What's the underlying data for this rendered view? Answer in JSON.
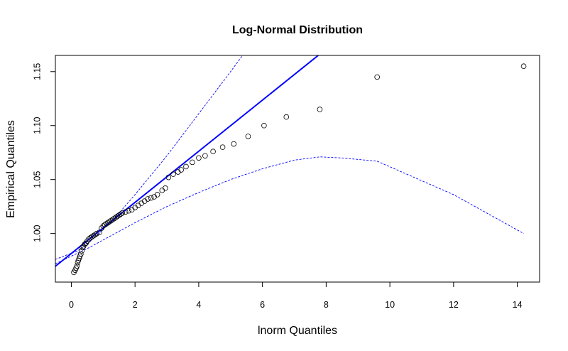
{
  "chart_data": {
    "type": "scatter",
    "title": "Log-Normal Distribution",
    "xlabel": "lnorm Quantiles",
    "ylabel": "Empirical Quantiles",
    "xlim": [
      -0.5,
      14.7
    ],
    "ylim": [
      0.955,
      1.165
    ],
    "x_ticks": [
      0,
      2,
      4,
      6,
      8,
      10,
      12,
      14
    ],
    "x_tick_labels": [
      "0",
      "2",
      "4",
      "6",
      "8",
      "10",
      "12",
      "14"
    ],
    "y_ticks": [
      1.0,
      1.05,
      1.1,
      1.15
    ],
    "y_tick_labels": [
      "1.00",
      "1.05",
      "1.10",
      "1.15"
    ],
    "grid": false,
    "legend": "none",
    "colors": {
      "reference_line": "#0000ff",
      "envelope": "#0000ff",
      "points": "#000000"
    },
    "reference_line": {
      "intercept": 0.9815,
      "slope": 0.02368
    },
    "envelope_upper": {
      "x": [
        -0.5,
        0.2,
        0.5,
        1.0,
        1.5,
        2.0,
        3.0,
        4.0,
        5.0,
        5.6
      ],
      "y": [
        0.976,
        0.984,
        0.99,
        1.004,
        1.019,
        1.036,
        1.072,
        1.111,
        1.15,
        1.174
      ]
    },
    "envelope_lower": {
      "x": [
        -0.5,
        0.5,
        1.0,
        2.0,
        3.0,
        4.0,
        5.0,
        6.0,
        7.0,
        7.8,
        8.5,
        9.6,
        12.0,
        14.2
      ],
      "y": [
        0.972,
        0.986,
        0.994,
        1.01,
        1.025,
        1.038,
        1.05,
        1.06,
        1.068,
        1.071,
        1.07,
        1.067,
        1.036,
        1.0
      ]
    },
    "series": [
      {
        "x": [
          0.08,
          0.12,
          0.15,
          0.18,
          0.2,
          0.22,
          0.25,
          0.27,
          0.3,
          0.33,
          0.35,
          0.38,
          0.42,
          0.46,
          0.5,
          0.55,
          0.6,
          0.65,
          0.7,
          0.75,
          0.8,
          0.88,
          0.95,
          1.0,
          1.05,
          1.1,
          1.15,
          1.2,
          1.25,
          1.3,
          1.35,
          1.4,
          1.45,
          1.5,
          1.55,
          1.6,
          1.7,
          1.8,
          1.9,
          2.0,
          2.1,
          2.2,
          2.3,
          2.4,
          2.5,
          2.6,
          2.7,
          2.85,
          2.95,
          3.05,
          3.2,
          3.35,
          3.45,
          3.6,
          3.8,
          4.0,
          4.2,
          4.45,
          4.75,
          5.1,
          5.55,
          6.05,
          6.75,
          7.8,
          9.6,
          14.2
        ],
        "y": [
          0.964,
          0.966,
          0.968,
          0.97,
          0.973,
          0.975,
          0.977,
          0.979,
          0.981,
          0.984,
          0.987,
          0.988,
          0.99,
          0.991,
          0.993,
          0.995,
          0.996,
          0.997,
          0.998,
          0.999,
          1.0,
          1.001,
          1.005,
          1.007,
          1.008,
          1.009,
          1.01,
          1.011,
          1.012,
          1.013,
          1.014,
          1.015,
          1.016,
          1.017,
          1.018,
          1.019,
          1.02,
          1.021,
          1.022,
          1.024,
          1.026,
          1.028,
          1.03,
          1.032,
          1.033,
          1.034,
          1.036,
          1.04,
          1.042,
          1.052,
          1.055,
          1.057,
          1.059,
          1.062,
          1.066,
          1.07,
          1.072,
          1.076,
          1.08,
          1.083,
          1.09,
          1.1,
          1.108,
          1.115,
          1.145,
          1.155
        ]
      }
    ]
  }
}
